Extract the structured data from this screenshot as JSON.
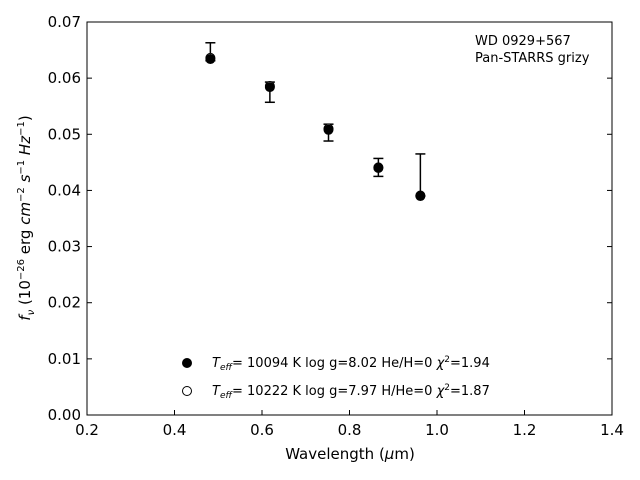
{
  "chart_data": {
    "type": "scatter",
    "xlabel": "Wavelength (μm)",
    "ylabel": "f_ν (10^-26 erg cm^-2 s^-1 Hz^-1)",
    "xlim": [
      0.2,
      1.4
    ],
    "ylim": [
      0.0,
      0.07
    ],
    "xticks": [
      0.2,
      0.4,
      0.6,
      0.8,
      1.0,
      1.2,
      1.4
    ],
    "yticks": [
      0.0,
      0.01,
      0.02,
      0.03,
      0.04,
      0.05,
      0.06,
      0.07
    ],
    "xtick_labels": [
      "0.2",
      "0.4",
      "0.6",
      "0.8",
      "1.0",
      "1.2",
      "1.4"
    ],
    "ytick_labels": [
      "0.00",
      "0.01",
      "0.02",
      "0.03",
      "0.04",
      "0.05",
      "0.06",
      "0.07"
    ],
    "grid": false,
    "annotation": [
      "WD 0929+567",
      "Pan-STARRS grizy"
    ],
    "observed": {
      "x": [
        0.482,
        0.618,
        0.752,
        0.866,
        0.962
      ],
      "y": [
        0.0637,
        0.0575,
        0.0503,
        0.0442,
        0.0395
      ],
      "yerr_low": [
        0.0637,
        0.0575,
        0.0503,
        0.0442,
        0.0395
      ],
      "yerr_high": [
        0.0637,
        0.0575,
        0.0503,
        0.0442,
        0.0395
      ],
      "err_low": [
        0.0631,
        0.0557,
        0.0488,
        0.0425,
        0.039
      ],
      "err_high": [
        0.0663,
        0.0593,
        0.0518,
        0.0457,
        0.0465
      ]
    },
    "series": [
      {
        "name": "T_eff= 10094 K  log g=8.02  He/H=0  χ²=1.94",
        "marker": "filled-circle",
        "x": [
          0.482,
          0.618,
          0.752,
          0.866,
          0.962
        ],
        "y": [
          0.0634,
          0.0584,
          0.0508,
          0.044,
          0.039
        ]
      },
      {
        "name": "T_eff= 10222 K  log g=7.97  H/He=0  χ²=1.87",
        "marker": "open-circle",
        "x": [
          0.482,
          0.618,
          0.752,
          0.866,
          0.962
        ],
        "y": [
          0.0636,
          0.0586,
          0.051,
          0.0441,
          0.0391
        ]
      }
    ],
    "legend_placement": "lower-center"
  }
}
